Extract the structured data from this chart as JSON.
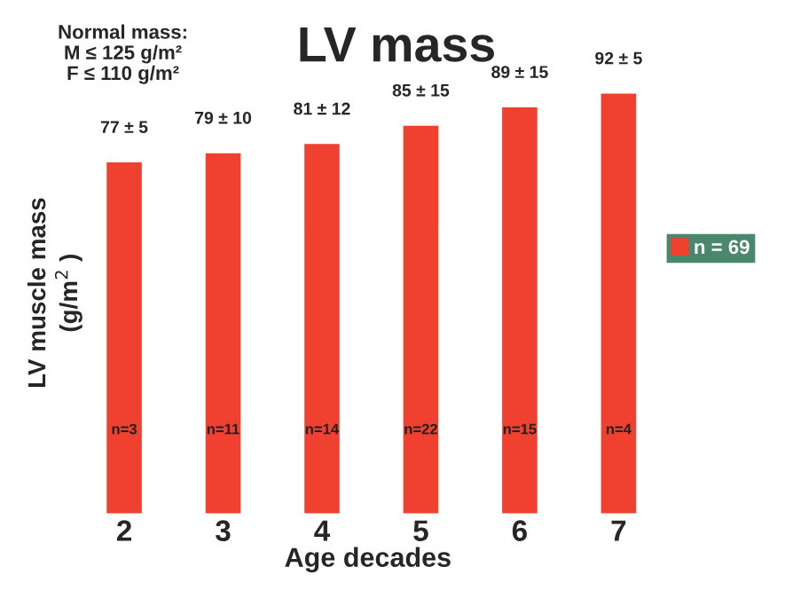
{
  "chart_data": {
    "type": "bar",
    "title": "LV mass",
    "xlabel": "Age decades",
    "ylabel": "LV muscle mass\n(g/m$^{2}$ )",
    "categories": [
      "2",
      "3",
      "4",
      "5",
      "6",
      "7"
    ],
    "series": [
      {
        "name": "n = 69",
        "color": "#ef4030",
        "values": [
          77,
          79,
          81,
          85,
          89,
          92
        ],
        "value_labels": [
          "77 ± 5",
          "79 ± 10",
          "81 ± 12",
          "85 ± 15",
          "89 ± 15",
          "92 ± 5"
        ]
      }
    ],
    "tick_labels": "x",
    "grid": false,
    "legend": "right",
    "annotations": [
      "Normal mass:\nM ≤ 125 g/m²\nF ≤ 110 g/m²",
      "n=3",
      "n=11",
      "n=14",
      "n=22",
      "n=15",
      "n=4"
    ]
  }
}
